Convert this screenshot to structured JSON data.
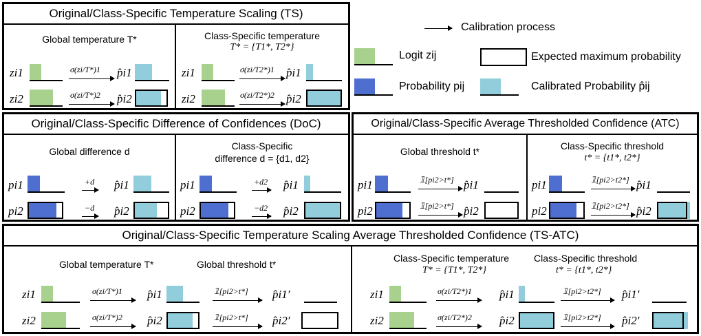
{
  "colors": {
    "logit": "#a9d18e",
    "probability": "#4f6fd0",
    "calibrated": "#92cddc"
  },
  "ts": {
    "title": "Original/Class-Specific Temperature Scaling (TS)",
    "global_header": "Global temperature T*",
    "class_header_1": "Class-Specific temperature",
    "class_header_2": "T* = {T1*, T2*}",
    "z1": "zi1",
    "z2": "zi2",
    "p1": "p̂i1",
    "p2": "p̂i2",
    "g_op1": "σ(zi/T*)1",
    "g_op2": "σ(zi/T*)2",
    "c_op1": "σ(zi/T2*)1",
    "c_op2": "σ(zi/T2*)2"
  },
  "legend": {
    "calibration": "Calibration process",
    "logit": "Logit zij",
    "expected": "Expected maximum probability",
    "probability": "Probability pij",
    "calibrated": "Calibrated Probability p̂ij"
  },
  "doc": {
    "title": "Original/Class-Specific Difference of Confidences (DoC)",
    "global_header": "Global difference d",
    "class_header_1": "Class-Specific",
    "class_header_2": "difference d = {d1, d2}",
    "p1": "pi1",
    "p2": "pi2",
    "ph1": "p̂i1",
    "ph2": "p̂i2",
    "g_op1": "+d",
    "g_op2": "−d",
    "c_op1": "+d2",
    "c_op2": "−d2"
  },
  "atc": {
    "title": "Original/Class-Specific Average Thresholded Confidence (ATC)",
    "global_header": "Global threshold t*",
    "class_header_1": "Class-Specific threshold",
    "class_header_2": "t* = {t1*, t2*}",
    "p1": "pi1",
    "p2": "pi2",
    "ph1": "p̂i1",
    "ph2": "p̂i2",
    "g_op": "𝟙[pi2>t*]",
    "c_op": "𝟙[pi2>t2*]"
  },
  "tsatc": {
    "title": "Original/Class-Specific Temperature Scaling Average Thresholded Confidence (TS-ATC)",
    "g_temp": "Global temperature T*",
    "g_thr": "Global threshold t*",
    "c_temp_1": "Class-Specific temperature",
    "c_temp_2": "T* = {T1*, T2*}",
    "c_thr_1": "Class-Specific threshold",
    "c_thr_2": "t* = {t1*, t2*}",
    "z1": "zi1",
    "z2": "zi2",
    "p1": "p̂i1",
    "p2": "p̂i2",
    "pp1": "p̂i1′",
    "pp2": "p̂i2′",
    "g_op1": "σ(zi/T*)1",
    "g_op2": "σ(zi/T*)2",
    "g_thr_op": "𝟙[pi2>t*]",
    "c_op1": "σ(zi/T2*)1",
    "c_op2": "σ(zi/T2*)2",
    "c_thr_op": "𝟙[pi2>t2*]"
  }
}
